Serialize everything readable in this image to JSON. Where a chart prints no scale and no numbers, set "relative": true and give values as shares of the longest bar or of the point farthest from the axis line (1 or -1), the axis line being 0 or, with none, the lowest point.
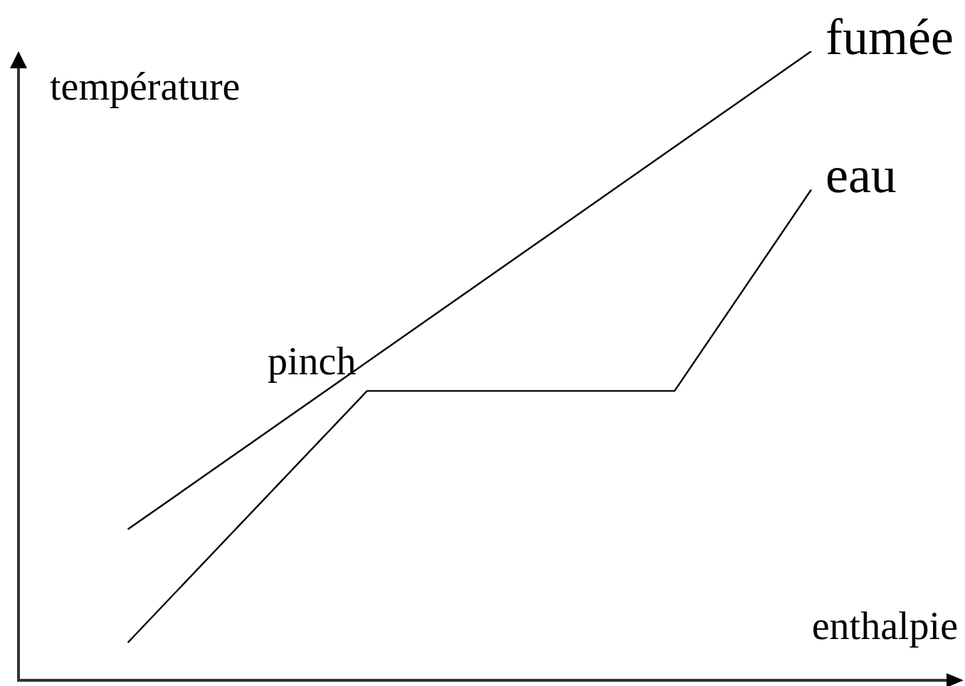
{
  "chart_data": {
    "type": "line",
    "xlabel": "enthalpie",
    "ylabel": "température",
    "annotations": [
      "pinch"
    ],
    "categories": [
      null,
      null,
      null,
      null,
      null,
      null,
      null,
      null,
      null,
      null,
      null,
      null,
      null,
      null,
      null,
      null,
      null,
      null,
      null,
      null,
      null
    ],
    "series": [
      {
        "name": "fumée",
        "color": "#000000",
        "values": [
          0.24,
          null,
          null,
          null,
          null,
          null,
          null,
          null,
          null,
          null,
          null,
          null,
          null,
          null,
          null,
          null,
          null,
          null,
          null,
          null,
          1
        ]
      },
      {
        "name": "eau",
        "color": "#000000",
        "values": [
          0.06,
          null,
          null,
          null,
          null,
          null,
          null,
          0.46,
          null,
          null,
          null,
          null,
          null,
          null,
          null,
          null,
          0.46,
          null,
          null,
          null,
          0.78
        ]
      }
    ],
    "relative": true,
    "tick_labels": false,
    "line_style": "solid"
  }
}
